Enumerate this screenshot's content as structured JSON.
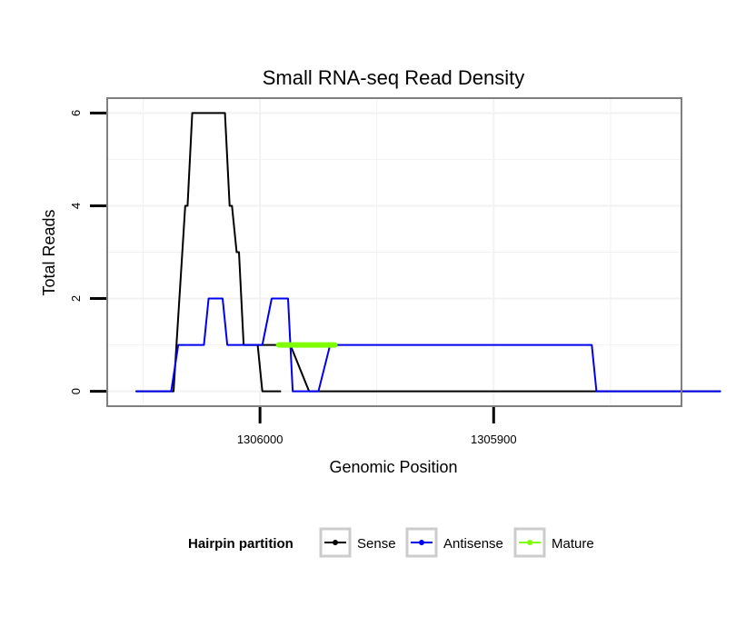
{
  "chart_data": {
    "type": "line",
    "title": "Small RNA-seq Read Density",
    "xlabel": "Genomic Position",
    "ylabel": "Total Reads",
    "x_reversed": true,
    "xlim": [
      1306065,
      1305820
    ],
    "ylim": [
      -0.3,
      6.3
    ],
    "x_ticks": [
      {
        "value": 1306000,
        "label": "1306000"
      },
      {
        "value": 1305900,
        "label": "1305900"
      }
    ],
    "y_ticks": [
      {
        "value": 0,
        "label": "0"
      },
      {
        "value": 2,
        "label": "2"
      },
      {
        "value": 4,
        "label": "4"
      },
      {
        "value": 6,
        "label": "6"
      }
    ],
    "grid": true,
    "series": [
      {
        "name": "Sense",
        "color": "#000000",
        "x": [
          1306053,
          1306037,
          1306032,
          1306031,
          1306029,
          1306015,
          1306013,
          1306012,
          1306010,
          1306009,
          1306007,
          1306001,
          1305999,
          1305991,
          1306001.5,
          1305998.5,
          1305991.5,
          1305987,
          1305979,
          1305803
        ],
        "y": [
          0,
          0,
          4,
          4,
          6,
          6,
          4,
          4,
          3,
          3,
          1,
          1,
          0,
          0,
          1,
          1,
          1,
          1,
          0,
          0
        ]
      },
      {
        "name": "Antisense",
        "color": "#0000ee",
        "x": [
          1306053,
          1306038,
          1306035,
          1306024,
          1306022,
          1306016,
          1306014,
          1306008,
          1306006,
          1305999,
          1305995,
          1305988,
          1305986,
          1305975,
          1305970,
          1305880,
          1305878,
          1305858,
          1305856,
          1305803
        ],
        "y": [
          0,
          0,
          1,
          1,
          2,
          2,
          1,
          1,
          1,
          1,
          2,
          2,
          0,
          0,
          1,
          1,
          1,
          1,
          0,
          0
        ]
      },
      {
        "name": "Mature",
        "color": "#7fff00",
        "x": [
          1305992,
          1305968
        ],
        "y": [
          1,
          1
        ]
      }
    ],
    "legend": {
      "title": "Hairpin partition",
      "position": "bottom",
      "entries": [
        "Sense",
        "Antisense",
        "Mature"
      ]
    }
  },
  "colors": {
    "panel_border": "#7f7f7f",
    "grid": "#f2f2f2",
    "legend_box": "#cccccc"
  }
}
